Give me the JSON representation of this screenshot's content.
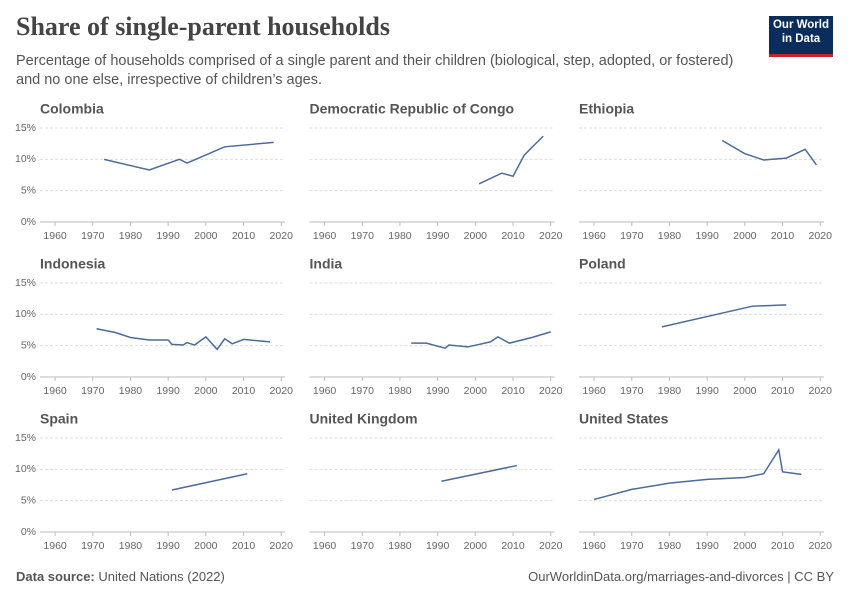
{
  "header": {
    "title": "Share of single-parent households",
    "subtitle": "Percentage of households comprised of a single parent and their children (biological, step, adopted, or fostered) and no one else, irrespective of children’s ages.",
    "logo": [
      "Our World",
      "in Data"
    ]
  },
  "footer": {
    "source_label": "Data source:",
    "source": "United Nations (2022)",
    "url": "OurWorldinData.org/marriages-and-divorces | CC BY"
  },
  "chart_data": [
    {
      "type": "line",
      "title": "Colombia",
      "color": "#4c6a9c",
      "x": [
        1973,
        1985,
        1993,
        1995,
        2005,
        2018
      ],
      "values": [
        10,
        8.3,
        10,
        9.4,
        12,
        12.7
      ],
      "xlim": [
        1956,
        2021
      ],
      "ylim": [
        0,
        15
      ],
      "xticks": [
        1960,
        1970,
        1980,
        1990,
        2000,
        2010,
        2020
      ],
      "yticks": [
        {
          "value": 0,
          "label": "0%"
        },
        {
          "value": 5,
          "label": "5%"
        },
        {
          "value": 10,
          "label": "10%"
        },
        {
          "value": 15,
          "label": "15%"
        }
      ]
    },
    {
      "type": "line",
      "title": "Democratic Republic of Congo",
      "color": "#4c6a9c",
      "x": [
        2001,
        2007,
        2010,
        2013,
        2018
      ],
      "values": [
        6.1,
        7.8,
        7.3,
        10.7,
        13.7
      ],
      "xlim": [
        1956,
        2021
      ],
      "ylim": [
        0,
        15
      ],
      "xticks": [
        1960,
        1970,
        1980,
        1990,
        2000,
        2010,
        2020
      ],
      "yticks": [
        0,
        5,
        10,
        15
      ]
    },
    {
      "type": "line",
      "title": "Ethiopia",
      "color": "#4c6a9c",
      "x": [
        1994,
        2000,
        2005,
        2011,
        2016,
        2019
      ],
      "values": [
        13,
        10.9,
        9.9,
        10.2,
        11.6,
        9.1
      ],
      "xlim": [
        1956,
        2021
      ],
      "ylim": [
        0,
        15
      ],
      "xticks": [
        1960,
        1970,
        1980,
        1990,
        2000,
        2010,
        2020
      ],
      "yticks": [
        0,
        5,
        10,
        15
      ]
    },
    {
      "type": "line",
      "title": "Indonesia",
      "color": "#4c6a9c",
      "x": [
        1971,
        1976,
        1980,
        1985,
        1990,
        1991,
        1994,
        1995,
        1997,
        2000,
        2003,
        2005,
        2007,
        2010,
        2017
      ],
      "values": [
        7.7,
        7.1,
        6.3,
        5.9,
        5.9,
        5.2,
        5.1,
        5.5,
        5.1,
        6.4,
        4.4,
        6.1,
        5.3,
        6.0,
        5.6
      ],
      "xlim": [
        1956,
        2021
      ],
      "ylim": [
        0,
        15
      ],
      "xticks": [
        1960,
        1970,
        1980,
        1990,
        2000,
        2010,
        2020
      ],
      "yticks": [
        {
          "value": 0,
          "label": "0%"
        },
        {
          "value": 5,
          "label": "5%"
        },
        {
          "value": 10,
          "label": "10%"
        },
        {
          "value": 15,
          "label": "15%"
        }
      ]
    },
    {
      "type": "line",
      "title": "India",
      "color": "#4c6a9c",
      "x": [
        1983,
        1987,
        1992,
        1993,
        1998,
        2004,
        2006,
        2009,
        2015,
        2020
      ],
      "values": [
        5.4,
        5.4,
        4.6,
        5.1,
        4.8,
        5.6,
        6.4,
        5.4,
        6.3,
        7.2
      ],
      "xlim": [
        1956,
        2021
      ],
      "ylim": [
        0,
        15
      ],
      "xticks": [
        1960,
        1970,
        1980,
        1990,
        2000,
        2010,
        2020
      ],
      "yticks": [
        0,
        5,
        10,
        15
      ]
    },
    {
      "type": "line",
      "title": "Poland",
      "color": "#4c6a9c",
      "x": [
        1978,
        2002,
        2011
      ],
      "values": [
        8,
        11.3,
        11.5
      ],
      "xlim": [
        1956,
        2021
      ],
      "ylim": [
        0,
        15
      ],
      "xticks": [
        1960,
        1970,
        1980,
        1990,
        2000,
        2010,
        2020
      ],
      "yticks": [
        0,
        5,
        10,
        15
      ]
    },
    {
      "type": "line",
      "title": "Spain",
      "color": "#4c6a9c",
      "x": [
        1991,
        2011
      ],
      "values": [
        6.7,
        9.3
      ],
      "xlim": [
        1956,
        2021
      ],
      "ylim": [
        0,
        15
      ],
      "xticks": [
        1960,
        1970,
        1980,
        1990,
        2000,
        2010,
        2020
      ],
      "yticks": [
        {
          "value": 0,
          "label": "0%"
        },
        {
          "value": 5,
          "label": "5%"
        },
        {
          "value": 10,
          "label": "10%"
        },
        {
          "value": 15,
          "label": "15%"
        }
      ]
    },
    {
      "type": "line",
      "title": "United Kingdom",
      "color": "#4c6a9c",
      "x": [
        1991,
        2011
      ],
      "values": [
        8.1,
        10.6
      ],
      "xlim": [
        1956,
        2021
      ],
      "ylim": [
        0,
        15
      ],
      "xticks": [
        1960,
        1970,
        1980,
        1990,
        2000,
        2010,
        2020
      ],
      "yticks": [
        0,
        5,
        10,
        15
      ]
    },
    {
      "type": "line",
      "title": "United States",
      "color": "#4c6a9c",
      "x": [
        1960,
        1970,
        1980,
        1990,
        2000,
        2005,
        2009,
        2010,
        2015
      ],
      "values": [
        5.2,
        6.8,
        7.8,
        8.4,
        8.7,
        9.3,
        13.1,
        9.6,
        9.2
      ],
      "xlim": [
        1956,
        2021
      ],
      "ylim": [
        0,
        15
      ],
      "xticks": [
        1960,
        1970,
        1980,
        1990,
        2000,
        2010,
        2020
      ],
      "yticks": [
        0,
        5,
        10,
        15
      ]
    }
  ]
}
